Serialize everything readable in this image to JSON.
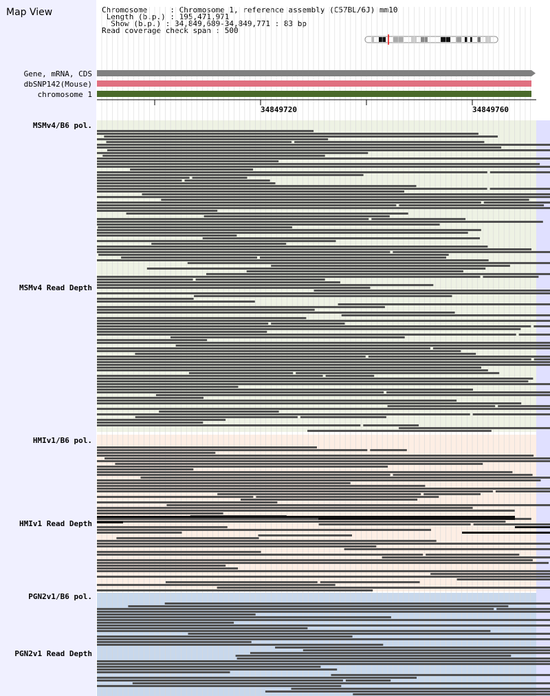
{
  "title": "Map View",
  "header": {
    "chromosome_line": "Chromosome     : Chromosome 1, reference assembly (C57BL/6J) mm10",
    "length_line": " Length (b.p.) : 195,471,971",
    "show_line": "  Show (b.p.) : 34,849,689-34,849,771 : 83 bp",
    "coverage_line": "Read coverage check span : 500"
  },
  "tracks": {
    "gene": "Gene, mRNA, CDS",
    "dbsnp": "dbSNP142(Mouse)",
    "chromosome": "chromosome 1"
  },
  "ruler": {
    "pos1": "34849720",
    "pos2": "34849760"
  },
  "sections": {
    "msm_pol": "MSMv4/B6 pol.",
    "msm_depth": "MSMv4 Read Depth",
    "hmi_pol": "HMIv1/B6 pol.",
    "hmi_depth": "HMIv1 Read Depth",
    "pgn_pol": "PGN2v1/B6 pol.",
    "pgn_depth": "PGN2v1 Read Depth"
  },
  "colors": {
    "sidebar_bg": "#f0f0ff",
    "gene_track": "#808080",
    "dbsnp_track": "#e07080",
    "chromosome_track": "#4a6a2a",
    "msm_bg": "#eef2e4",
    "hmi_bg": "#fdeee4",
    "pgn_bg": "#c8d8ec",
    "read": "#505050",
    "read_dark": "#101010",
    "grid": "#d8d8d8",
    "selection": "#e0e0ff"
  }
}
